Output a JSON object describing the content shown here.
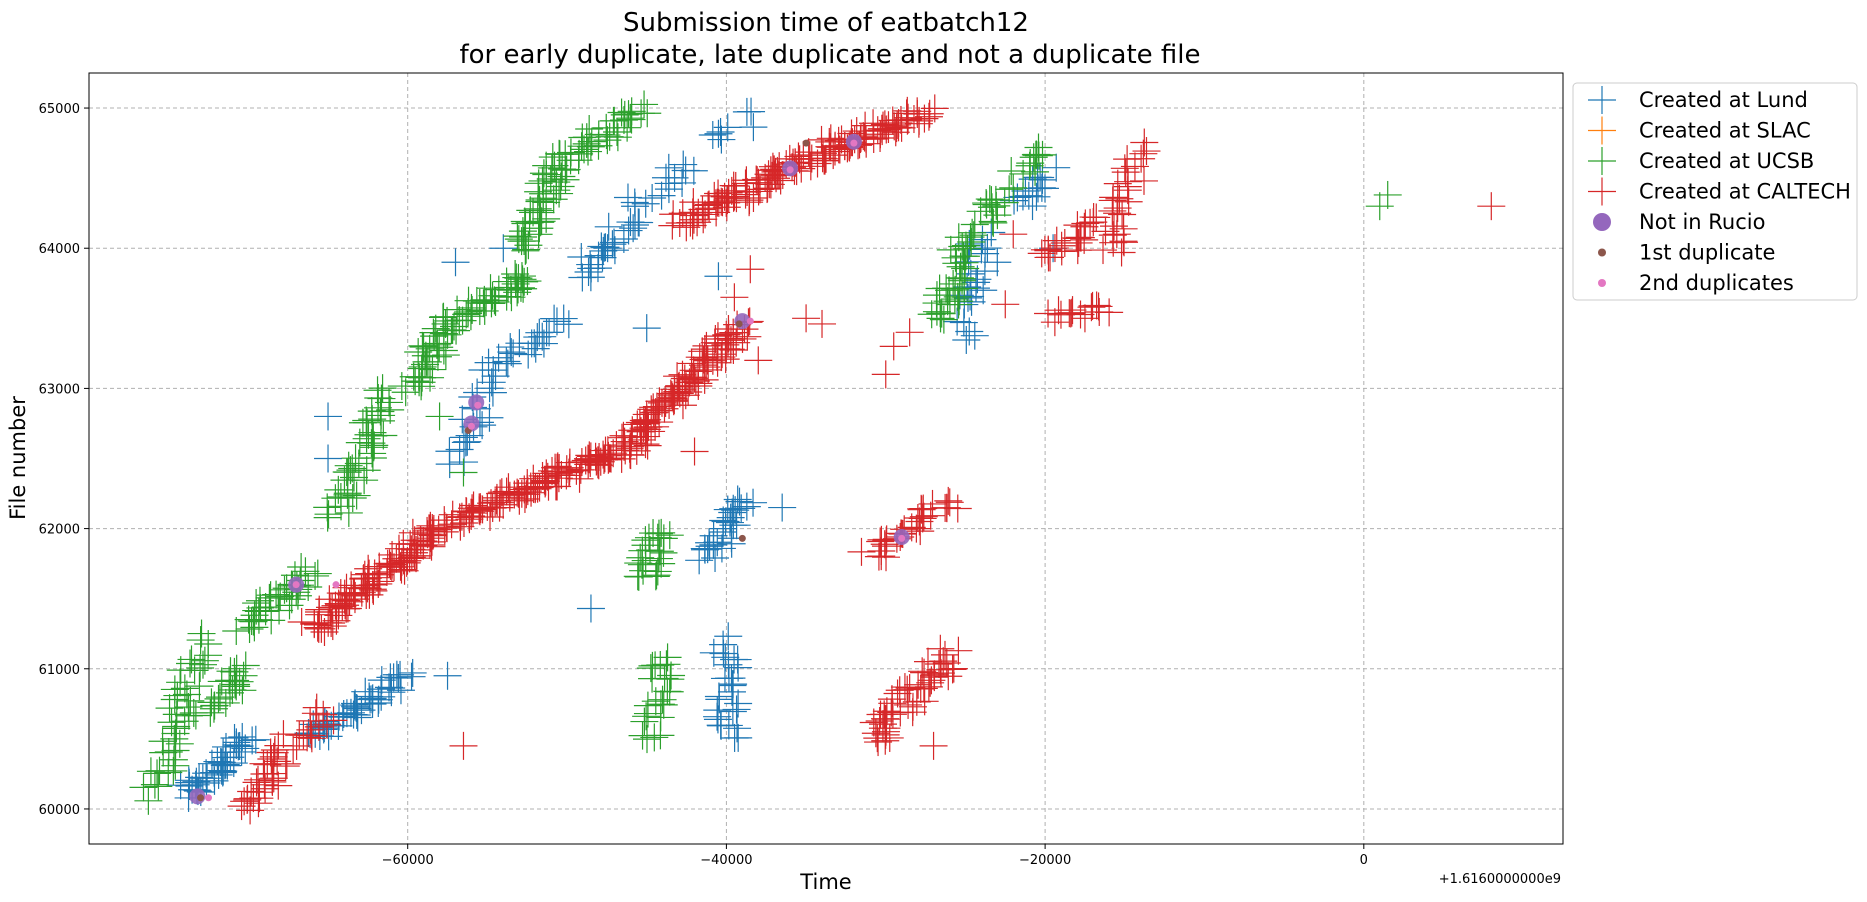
{
  "chart_data": {
    "type": "scatter",
    "title": [
      "Submission time of eatbatch12",
      "for early duplicate, late duplicate and not a duplicate file"
    ],
    "xlabel": "Time",
    "ylabel": "File number",
    "x_offset_label": "+1.6160000000e9",
    "xlim": [
      -80000,
      12500
    ],
    "ylim": [
      59750,
      65250
    ],
    "x_ticks": [
      -60000,
      -40000,
      -20000,
      0
    ],
    "x_tick_labels": [
      "−60000",
      "−40000",
      "−20000",
      "0"
    ],
    "y_ticks": [
      60000,
      61000,
      62000,
      63000,
      64000,
      65000
    ],
    "y_tick_labels": [
      "60000",
      "61000",
      "62000",
      "63000",
      "64000",
      "65000"
    ],
    "grid": true,
    "legend_position": "outside-upper-right",
    "series": [
      {
        "name": "Created at Lund",
        "marker": "plus",
        "color": "#1f77b4",
        "segments": [
          {
            "from": [
              -74000,
              60100
            ],
            "to": [
              -70000,
              60500
            ],
            "n": 45
          },
          {
            "from": [
              -66000,
              60500
            ],
            "to": [
              -60000,
              60950
            ],
            "n": 50
          },
          {
            "from": [
              -57000,
              62500
            ],
            "to": [
              -55000,
              63000
            ],
            "n": 20
          },
          {
            "from": [
              -55000,
              63100
            ],
            "to": [
              -50000,
              63500
            ],
            "n": 25
          },
          {
            "from": [
              -49000,
              63800
            ],
            "to": [
              -46000,
              64200
            ],
            "n": 25
          },
          {
            "from": [
              -46000,
              64300
            ],
            "to": [
              -42000,
              64600
            ],
            "n": 15
          },
          {
            "from": [
              -41000,
              64800
            ],
            "to": [
              -38000,
              64950
            ],
            "n": 8
          },
          {
            "from": [
              -41000,
              61800
            ],
            "to": [
              -39000,
              62200
            ],
            "n": 30
          },
          {
            "from": [
              -40000,
              60500
            ],
            "to": [
              -40000,
              61200
            ],
            "n": 30
          },
          {
            "from": [
              -25000,
              63400
            ],
            "to": [
              -24000,
              64100
            ],
            "n": 25
          },
          {
            "from": [
              -21500,
              64300
            ],
            "to": [
              -20000,
              64550
            ],
            "n": 15
          }
        ],
        "points": [
          [
            -65000,
            62800
          ],
          [
            -65000,
            62500
          ],
          [
            -57500,
            60950
          ],
          [
            -57000,
            63900
          ],
          [
            -54000,
            64000
          ],
          [
            -48500,
            61430
          ],
          [
            -45000,
            63430
          ],
          [
            -36500,
            62150
          ],
          [
            -40500,
            63800
          ],
          [
            -23000,
            63900
          ],
          [
            -19500,
            64000
          ]
        ]
      },
      {
        "name": "Created at SLAC",
        "marker": "plus",
        "color": "#ff7f0e",
        "segments": [],
        "points": []
      },
      {
        "name": "Created at UCSB",
        "marker": "plus",
        "color": "#2ca02c",
        "segments": [
          {
            "from": [
              -76000,
              60100
            ],
            "to": [
              -73000,
              61200
            ],
            "n": 45
          },
          {
            "from": [
              -73000,
              60700
            ],
            "to": [
              -70000,
              61000
            ],
            "n": 25
          },
          {
            "from": [
              -70000,
              61300
            ],
            "to": [
              -66000,
              61700
            ],
            "n": 40
          },
          {
            "from": [
              -64500,
              62100
            ],
            "to": [
              -61000,
              63000
            ],
            "n": 50
          },
          {
            "from": [
              -60000,
              63000
            ],
            "to": [
              -57000,
              63500
            ],
            "n": 40
          },
          {
            "from": [
              -57000,
              63500
            ],
            "to": [
              -52000,
              63800
            ],
            "n": 40
          },
          {
            "from": [
              -53000,
              64000
            ],
            "to": [
              -50500,
              64600
            ],
            "n": 45
          },
          {
            "from": [
              -50500,
              64600
            ],
            "to": [
              -45500,
              65000
            ],
            "n": 40
          },
          {
            "from": [
              -45000,
              61650
            ],
            "to": [
              -44000,
              62000
            ],
            "n": 25
          },
          {
            "from": [
              -44800,
              60500
            ],
            "to": [
              -44000,
              61100
            ],
            "n": 25
          },
          {
            "from": [
              -26500,
              63500
            ],
            "to": [
              -26000,
              63700
            ],
            "n": 15
          },
          {
            "from": [
              -26000,
              63700
            ],
            "to": [
              -25000,
              64100
            ],
            "n": 25
          },
          {
            "from": [
              -24000,
              64200
            ],
            "to": [
              -22500,
              64400
            ],
            "n": 15
          },
          {
            "from": [
              -21500,
              64550
            ],
            "to": [
              -20500,
              64700
            ],
            "n": 12
          }
        ],
        "points": [
          [
            -58000,
            62800
          ],
          [
            -56500,
            62400
          ],
          [
            1000,
            64300
          ],
          [
            1500,
            64380
          ]
        ]
      },
      {
        "name": "Created at CALTECH",
        "marker": "plus",
        "color": "#d62728",
        "segments": [
          {
            "from": [
              -70000,
              60000
            ],
            "to": [
              -67500,
              60500
            ],
            "n": 35
          },
          {
            "from": [
              -66000,
              60500
            ],
            "to": [
              -65000,
              60700
            ],
            "n": 12
          },
          {
            "from": [
              -66000,
              61300
            ],
            "to": [
              -58000,
              62000
            ],
            "n": 110
          },
          {
            "from": [
              -58000,
              62000
            ],
            "to": [
              -52000,
              62300
            ],
            "n": 60
          },
          {
            "from": [
              -52000,
              62300
            ],
            "to": [
              -46000,
              62600
            ],
            "n": 70
          },
          {
            "from": [
              -46000,
              62600
            ],
            "to": [
              -39000,
              63450
            ],
            "n": 110
          },
          {
            "from": [
              -43000,
              64200
            ],
            "to": [
              -37000,
              64500
            ],
            "n": 60
          },
          {
            "from": [
              -37000,
              64500
            ],
            "to": [
              -33000,
              64750
            ],
            "n": 45
          },
          {
            "from": [
              -33000,
              64750
            ],
            "to": [
              -27500,
              64950
            ],
            "n": 55
          },
          {
            "from": [
              -31000,
              61800
            ],
            "to": [
              -26000,
              62200
            ],
            "n": 35
          },
          {
            "from": [
              -31000,
              60500
            ],
            "to": [
              -26000,
              61100
            ],
            "n": 55
          },
          {
            "from": [
              -20000,
              63900
            ],
            "to": [
              -17000,
              64200
            ],
            "n": 25
          },
          {
            "from": [
              -19500,
              63500
            ],
            "to": [
              -16000,
              63600
            ],
            "n": 15
          },
          {
            "from": [
              -16000,
              64000
            ],
            "to": [
              -14000,
              64700
            ],
            "n": 30
          }
        ],
        "points": [
          [
            -56500,
            60450
          ],
          [
            -42000,
            62550
          ],
          [
            -39500,
            63650
          ],
          [
            -38500,
            63850
          ],
          [
            -38000,
            63200
          ],
          [
            -35000,
            63500
          ],
          [
            -34000,
            63460
          ],
          [
            -30000,
            63100
          ],
          [
            -29500,
            63300
          ],
          [
            -28500,
            63400
          ],
          [
            -22500,
            63600
          ],
          [
            -22000,
            64100
          ],
          [
            -17500,
            63500
          ],
          [
            -15500,
            64100
          ],
          [
            -27000,
            60450
          ],
          [
            8000,
            64300
          ]
        ]
      },
      {
        "name": "Not in Rucio",
        "marker": "circle",
        "color": "#9467bd",
        "segments": [],
        "points": [
          [
            -73200,
            60090
          ],
          [
            -67000,
            61600
          ],
          [
            -56000,
            62750
          ],
          [
            -55700,
            62900
          ],
          [
            -39000,
            63480
          ],
          [
            -36000,
            64570
          ],
          [
            -32000,
            64760
          ],
          [
            -29000,
            61940
          ]
        ]
      },
      {
        "name": "1st duplicate",
        "marker": "dot",
        "color": "#8c564b",
        "segments": [],
        "points": [
          [
            -73000,
            60080
          ],
          [
            -56200,
            62700
          ],
          [
            -39200,
            63460
          ],
          [
            -39000,
            61930
          ],
          [
            -35000,
            64750
          ]
        ]
      },
      {
        "name": "2nd duplicates",
        "marker": "dot",
        "color": "#e377c2",
        "segments": [],
        "points": [
          [
            -72500,
            60080
          ],
          [
            -67000,
            61600
          ],
          [
            -64500,
            61600
          ],
          [
            -56000,
            62730
          ],
          [
            -55600,
            62880
          ],
          [
            -38500,
            63480
          ],
          [
            -36000,
            64560
          ],
          [
            -32000,
            64750
          ],
          [
            -29000,
            61930
          ]
        ]
      }
    ]
  }
}
